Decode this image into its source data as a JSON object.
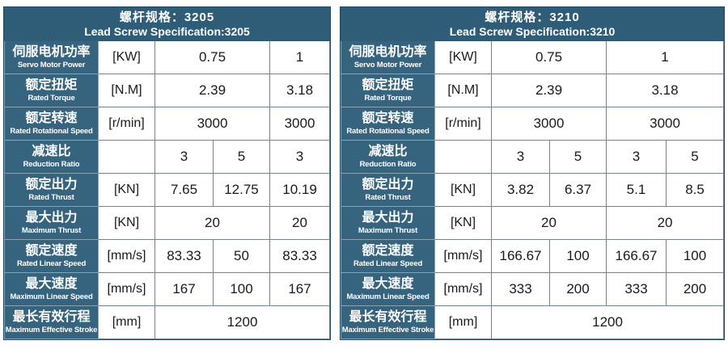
{
  "tables": [
    {
      "title_zh": "螺杆规格：3205",
      "title_en": "Lead Screw Specification:3205",
      "rows": {
        "power": {
          "label_zh": "伺服电机功率",
          "label_en": "Servo Motor Power",
          "unit": "[KW]",
          "values": [
            "0.75",
            "1"
          ]
        },
        "torque": {
          "label_zh": "额定扭矩",
          "label_en": "Rated Torque",
          "unit": "[N.M]",
          "values": [
            "2.39",
            "3.18"
          ]
        },
        "speed": {
          "label_zh": "额定转速",
          "label_en": "Rated Rotational Speed",
          "unit": "[r/min]",
          "values": [
            "3000",
            "3000"
          ]
        },
        "ratio": {
          "label_zh": "减速比",
          "label_en": "Reduction Ratio",
          "unit": "",
          "values": [
            "3",
            "5",
            "3"
          ]
        },
        "rated_thrust": {
          "label_zh": "额定出力",
          "label_en": "Rated Thrust",
          "unit": "[KN]",
          "values": [
            "7.65",
            "12.75",
            "10.19"
          ]
        },
        "max_thrust": {
          "label_zh": "最大出力",
          "label_en": "Maximum Thrust",
          "unit": "[KN]",
          "values": [
            "20",
            "20"
          ]
        },
        "rated_linear": {
          "label_zh": "额定速度",
          "label_en": "Rated Linear Speed",
          "unit": "[mm/s]",
          "values": [
            "83.33",
            "50",
            "83.33"
          ]
        },
        "max_speed": {
          "label_zh": "最大速度",
          "label_en": "Maximum Linear Speed",
          "unit": "[mm/s]",
          "values": [
            "167",
            "100",
            "167"
          ]
        },
        "stroke": {
          "label_zh": "最长有效行程",
          "label_en": "Maximum Effective Stroke",
          "unit": "[mm]",
          "values": [
            "1200"
          ]
        }
      }
    },
    {
      "title_zh": "螺杆规格：3210",
      "title_en": "Lead Screw Specification:3210",
      "rows": {
        "power": {
          "label_zh": "伺服电机功率",
          "label_en": "Servo Motor Power",
          "unit": "[KW]",
          "values": [
            "0.75",
            "1"
          ]
        },
        "torque": {
          "label_zh": "额定扭矩",
          "label_en": "Rated Torque",
          "unit": "[N.M]",
          "values": [
            "2.39",
            "3.18"
          ]
        },
        "speed": {
          "label_zh": "额定转速",
          "label_en": "Rated Rotational Speed",
          "unit": "[r/min]",
          "values": [
            "3000",
            "3000"
          ]
        },
        "ratio": {
          "label_zh": "减速比",
          "label_en": "Reduction Ratio",
          "unit": "",
          "values": [
            "3",
            "5",
            "3",
            "5"
          ]
        },
        "rated_thrust": {
          "label_zh": "额定出力",
          "label_en": "Rated Thrust",
          "unit": "[KN]",
          "values": [
            "3.82",
            "6.37",
            "5.1",
            "8.5"
          ]
        },
        "max_thrust": {
          "label_zh": "最大出力",
          "label_en": "Maximum Thrust",
          "unit": "[KN]",
          "values": [
            "20",
            "20"
          ]
        },
        "rated_linear": {
          "label_zh": "额定速度",
          "label_en": "Rated Linear Speed",
          "unit": "[mm/s]",
          "values": [
            "166.67",
            "100",
            "166.67",
            "100"
          ]
        },
        "max_speed": {
          "label_zh": "最大速度",
          "label_en": "Maximum Linear Speed",
          "unit": "[mm/s]",
          "values": [
            "333",
            "200",
            "333",
            "200"
          ]
        },
        "stroke": {
          "label_zh": "最长有效行程",
          "label_en": "Maximum Effective Stroke",
          "unit": "[mm]",
          "values": [
            "1200"
          ]
        }
      }
    }
  ],
  "colors": {
    "header_bg": "#2f5d78",
    "label_bg": "#36647f",
    "border": "#6e8592",
    "text": "#1a1a1a"
  }
}
